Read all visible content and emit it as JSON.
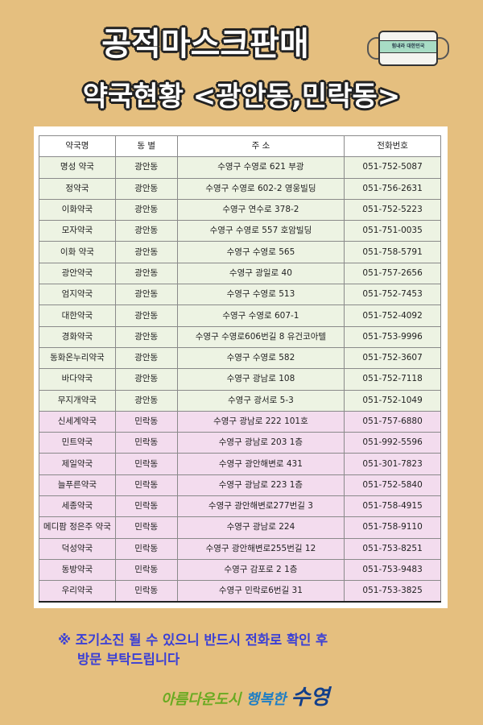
{
  "header": {
    "title": "공적마스크판매",
    "subtitle": "약국현황 <광안동,민락동>",
    "mask_text": "힘내라 대한민국"
  },
  "colors": {
    "background": "#e5bf7f",
    "gwangan_row": "#edf3e3",
    "minrak_row": "#f3dcee",
    "note": "#3a3fd6"
  },
  "table": {
    "headers": [
      "약국명",
      "동 별",
      "주 소",
      "전화번호"
    ],
    "rows": [
      [
        "명성 약국",
        "광안동",
        "수영구 수영로 621 부광",
        "051-752-5087"
      ],
      [
        "정약국",
        "광안동",
        "수영구 수영로 602-2 영웅빌딩",
        "051-756-2631"
      ],
      [
        "이화약국",
        "광안동",
        "수영구 연수로 378-2",
        "051-752-5223"
      ],
      [
        "모자약국",
        "광안동",
        "수영구 수영로 557 호암빌딩",
        "051-751-0035"
      ],
      [
        "이화 약국",
        "광안동",
        "수영구 수영로 565",
        "051-758-5791"
      ],
      [
        "광안약국",
        "광안동",
        "수영구 광일로 40",
        "051-757-2656"
      ],
      [
        "엄지약국",
        "광안동",
        "수영구 수영로 513",
        "051-752-7453"
      ],
      [
        "대한약국",
        "광안동",
        "수영구 수영로 607-1",
        "051-752-4092"
      ],
      [
        "경화약국",
        "광안동",
        "수영구 수영로606번길 8 유건코아텔",
        "051-753-9996"
      ],
      [
        "동화온누리약국",
        "광안동",
        "수영구 수영로 582",
        "051-752-3607"
      ],
      [
        "바다약국",
        "광안동",
        "수영구 광남로 108",
        "051-752-7118"
      ],
      [
        "무지개약국",
        "광안동",
        "수영구 광서로 5-3",
        "051-752-1049"
      ],
      [
        "신세계약국",
        "민락동",
        "수영구 광남로 222 101호",
        "051-757-6880"
      ],
      [
        "민트약국",
        "민락동",
        "수영구 광남로 203 1층",
        "051-992-5596"
      ],
      [
        "제일약국",
        "민락동",
        "수영구 광안해변로 431",
        "051-301-7823"
      ],
      [
        "늘푸른약국",
        "민락동",
        "수영구 광남로 223 1층",
        "051-752-5840"
      ],
      [
        "세종약국",
        "민락동",
        "수영구 광안해변로277번길 3",
        "051-758-4915"
      ],
      [
        "메디팜 정은주 약국",
        "민락동",
        "수영구 광남로 224",
        "051-758-9110"
      ],
      [
        "덕성약국",
        "민락동",
        "수영구 광안해변로255번길 12",
        "051-753-8251"
      ],
      [
        "동방약국",
        "민락동",
        "수영구 감포로 2 1층",
        "051-753-9483"
      ],
      [
        "우리약국",
        "민락동",
        "수영구 민락로6번길 31",
        "051-753-3825"
      ]
    ]
  },
  "notice": {
    "line1": "※ 조기소진 될 수 있으니 반드시 전화로 확인 후",
    "line2": "방문 부탁드립니다"
  },
  "logo": {
    "part1": "아름다운도시",
    "part2": "행복한",
    "part3": "수영"
  }
}
